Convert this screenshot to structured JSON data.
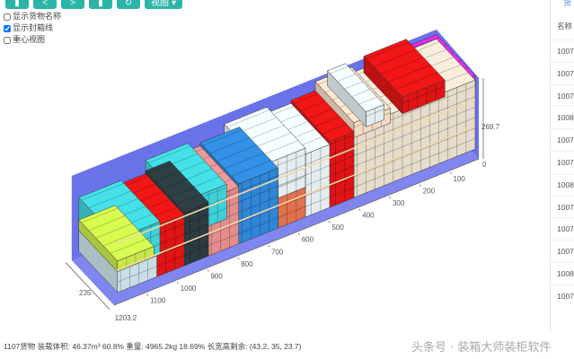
{
  "toolbar": {
    "buttons": [
      {
        "icon": "bookmark-icon"
      },
      {
        "icon": "chevron-left-icon",
        "glyph": "<"
      },
      {
        "icon": "chevron-right-icon",
        "glyph": ">"
      },
      {
        "icon": "bookmark-icon"
      },
      {
        "icon": "refresh-icon",
        "glyph": "↻"
      }
    ],
    "view_label": "视图",
    "accent": "#2bb5a8"
  },
  "options": [
    {
      "label": "显示货物名称",
      "checked": false
    },
    {
      "label": "显示封箱线",
      "checked": true
    },
    {
      "label": "重心视图",
      "checked": false
    }
  ],
  "axes": {
    "length_ticks": [
      "100",
      "200",
      "300",
      "400",
      "500",
      "600",
      "700",
      "800",
      "900",
      "1000",
      "1100"
    ],
    "length_end": "1203.2",
    "height_max": "269.7",
    "height_zero": "0",
    "depth": "235"
  },
  "container": {
    "wall_color": "#6a72ea"
  },
  "cargo_colors": {
    "lightblue": "#c9dfe6",
    "cyan": "#3fd0d8",
    "lime": "#c8e84a",
    "red": "#e01414",
    "dark": "#2b3b40",
    "pink": "#e38d8d",
    "blue": "#2f86d6",
    "salmon": "#e0704e",
    "white": "#e4ecef",
    "beige": "#e6dccb",
    "peach": "#f3d9c2",
    "magenta": "#d62ad6"
  },
  "status": {
    "text": "1107货物 装载体积: 46.37m³ 60.8% 重量: 4965.2kg 18.69% 长宽高剩余: (43.2, 35, 23.7)"
  },
  "watermark": "头条号 · 装箱大师装柜软件",
  "panel": {
    "link": "货",
    "header": "名称",
    "rows": [
      "1007",
      "1007",
      "1007",
      "1008",
      "1007",
      "1007",
      "1008",
      "1007",
      "1007",
      "1007",
      "1008",
      "1007"
    ]
  }
}
